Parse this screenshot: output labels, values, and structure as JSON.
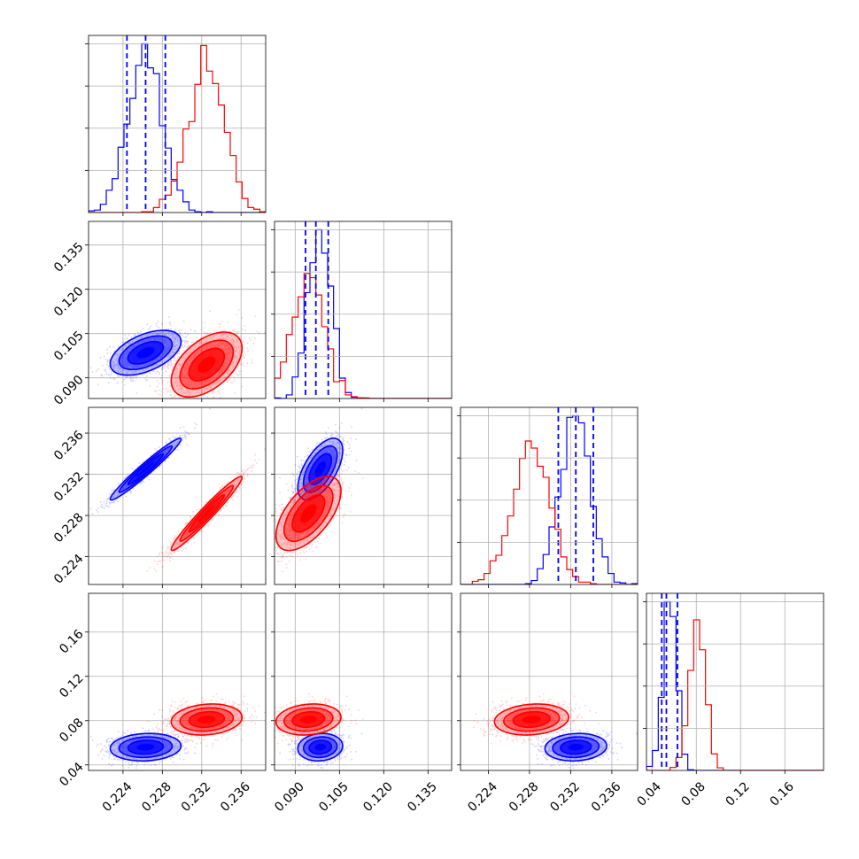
{
  "chart_data": {
    "type": "corner",
    "colors": {
      "blue": "#0000ff",
      "red": "#ff0000"
    },
    "grid": true,
    "legend": "none",
    "params": [
      {
        "range": [
          0.2205,
          0.2385
        ],
        "ticks": [
          0.224,
          0.228,
          0.232,
          0.236
        ],
        "tick_labels": [
          "0.224",
          "0.228",
          "0.232",
          "0.236"
        ]
      },
      {
        "range": [
          0.083,
          0.143
        ],
        "ticks": [
          0.09,
          0.105,
          0.12,
          0.135
        ],
        "tick_labels": [
          "0.090",
          "0.105",
          "0.120",
          "0.135"
        ]
      },
      {
        "range": [
          0.2213,
          0.2385
        ],
        "ticks": [
          0.224,
          0.228,
          0.232,
          0.236
        ],
        "tick_labels": [
          "0.224",
          "0.228",
          "0.232",
          "0.236"
        ]
      },
      {
        "range": [
          0.035,
          0.195
        ],
        "ticks": [
          0.04,
          0.08,
          0.12,
          0.16
        ],
        "tick_labels": [
          "0.04",
          "0.08",
          "0.12",
          "0.16"
        ]
      }
    ],
    "series": [
      {
        "color": "blue",
        "mean": [
          0.2263,
          0.0985,
          0.2325,
          0.056
        ],
        "sd": [
          0.0018,
          0.0038,
          0.0015,
          0.0062
        ],
        "corr": [
          [
            1,
            0.5,
            0.97,
            0.1
          ],
          [
            0.5,
            1,
            0.6,
            0.1
          ],
          [
            0.97,
            0.6,
            1,
            0.1
          ],
          [
            0.1,
            0.1,
            0.1,
            1
          ]
        ],
        "quantiles": [
          [
            0.2244,
            0.2263,
            0.2283
          ],
          [
            0.0935,
            0.097,
            0.1012
          ],
          [
            0.2308,
            0.2325,
            0.2342
          ],
          [
            0.0488,
            0.053,
            0.063
          ]
        ]
      },
      {
        "color": "red",
        "mean": [
          0.2325,
          0.0945,
          0.2282,
          0.081
        ],
        "sd": [
          0.0018,
          0.0055,
          0.0018,
          0.007
        ],
        "corr": [
          [
            1,
            0.5,
            0.97,
            0.15
          ],
          [
            0.5,
            1,
            0.6,
            0.15
          ],
          [
            0.97,
            0.6,
            1,
            0.15
          ],
          [
            0.15,
            0.15,
            0.15,
            1
          ]
        ],
        "quantiles": []
      }
    ]
  }
}
